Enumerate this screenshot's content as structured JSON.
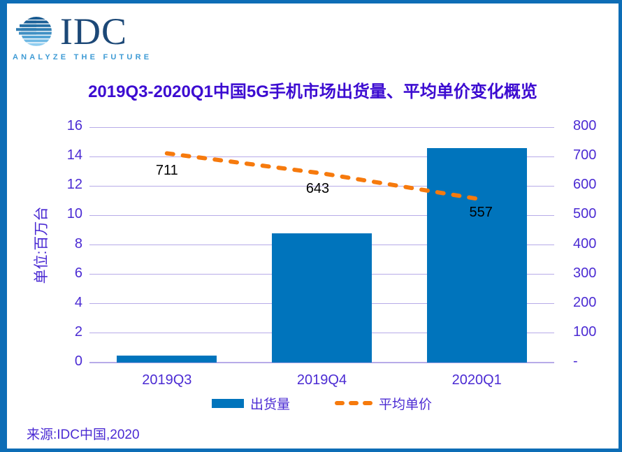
{
  "logo": {
    "name": "IDC",
    "tagline": "ANALYZE THE FUTURE"
  },
  "title": "2019Q3-2020Q1中国5G手机市场出货量、平均单价变化概览",
  "source": "来源:IDC中国,2020",
  "legend": {
    "bars": "出货量",
    "line": "平均单价"
  },
  "axes": {
    "left": {
      "title": "单位:百万台",
      "ticks": [
        "16",
        "14",
        "12",
        "10",
        "8",
        "6",
        "4",
        "2",
        "0"
      ]
    },
    "right": {
      "ticks": [
        "800",
        "700",
        "600",
        "500",
        "400",
        "300",
        "200",
        "100",
        "-"
      ]
    },
    "x": {
      "categories": [
        "2019Q3",
        "2019Q4",
        "2020Q1"
      ]
    }
  },
  "chart_data": {
    "type": "bar+line combo",
    "title": "2019Q3-2020Q1中国5G手机市场出货量、平均单价变化概览",
    "categories": [
      "2019Q3",
      "2019Q4",
      "2020Q1"
    ],
    "series": [
      {
        "name": "出货量",
        "type": "bar",
        "axis": "left",
        "values": [
          0.5,
          8.8,
          14.6
        ],
        "color": "#0074bc"
      },
      {
        "name": "平均单价",
        "type": "line",
        "axis": "right",
        "style": "dashed",
        "values": [
          711,
          643,
          557
        ],
        "color": "#f67a0d"
      }
    ],
    "left_axis": {
      "label": "单位:百万台",
      "range": [
        0,
        16
      ],
      "step": 2
    },
    "right_axis": {
      "range": [
        0,
        800
      ],
      "step": 100,
      "zero_tick": "-"
    },
    "data_labels": {
      "series": "平均单价",
      "values": [
        "711",
        "643",
        "557"
      ]
    },
    "legend_position": "bottom",
    "grid": true
  },
  "colors": {
    "border": "#0d6db6",
    "title_text": "#3c0bd1",
    "axis_text": "#4b2bd3",
    "grid": "#b7abe8",
    "bar_color": "#0074bc",
    "line_color": "#f67a0d",
    "data_label": "#000000",
    "logo_navy": "#1c4877",
    "logo_light": "#3e9bd5"
  }
}
